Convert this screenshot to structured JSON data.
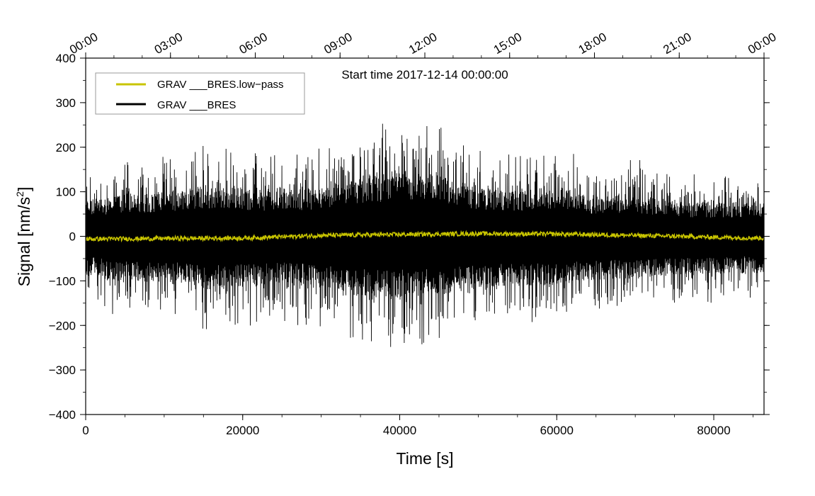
{
  "chart_data": {
    "type": "line",
    "annotation": "Start time 2017-12-14 00:00:00",
    "xlabel": "Time [s]",
    "ylabel_main": "Signal [nm/s",
    "ylabel_sup": "2",
    "ylabel_end": "]",
    "xlim": [
      0,
      86400
    ],
    "ylim": [
      -400,
      400
    ],
    "x_ticks": [
      0,
      20000,
      40000,
      60000,
      80000
    ],
    "x_tick_labels": [
      "0",
      "20000",
      "40000",
      "60000",
      "80000"
    ],
    "y_ticks": [
      -400,
      -300,
      -200,
      -100,
      0,
      100,
      200,
      300,
      400
    ],
    "y_tick_labels": [
      "−400",
      "−300",
      "−200",
      "−100",
      "0",
      "100",
      "200",
      "300",
      "400"
    ],
    "top_axis": {
      "ticks": [
        0,
        10800,
        21600,
        32400,
        43200,
        54000,
        64800,
        75600,
        86400
      ],
      "labels": [
        "00:00",
        "03:00",
        "06:00",
        "09:00",
        "12:00",
        "15:00",
        "18:00",
        "21:00",
        "00:00"
      ]
    },
    "legend_position": "top-left",
    "series": [
      {
        "name": "GRAV ___BRES.low−pass",
        "color": "#c8c400",
        "x": [
          0,
          10000,
          20000,
          30000,
          40000,
          50000,
          60000,
          70000,
          80000,
          86400
        ],
        "y": [
          -6,
          -5,
          -4,
          2,
          4,
          6,
          5,
          2,
          -2,
          -4
        ]
      },
      {
        "name": "GRAV ___BRES",
        "color": "#000000",
        "x": [
          0,
          5000,
          10000,
          15000,
          20000,
          25000,
          30000,
          35000,
          40000,
          45000,
          50000,
          55000,
          60000,
          65000,
          70000,
          75000,
          80000,
          86400
        ],
        "y_max": [
          150,
          175,
          180,
          205,
          195,
          190,
          200,
          250,
          260,
          250,
          200,
          185,
          205,
          165,
          175,
          145,
          140,
          140
        ],
        "y_min": [
          -150,
          -190,
          -175,
          -220,
          -210,
          -195,
          -215,
          -245,
          -250,
          -240,
          -215,
          -200,
          -205,
          -175,
          -175,
          -160,
          -150,
          -150
        ]
      }
    ]
  }
}
